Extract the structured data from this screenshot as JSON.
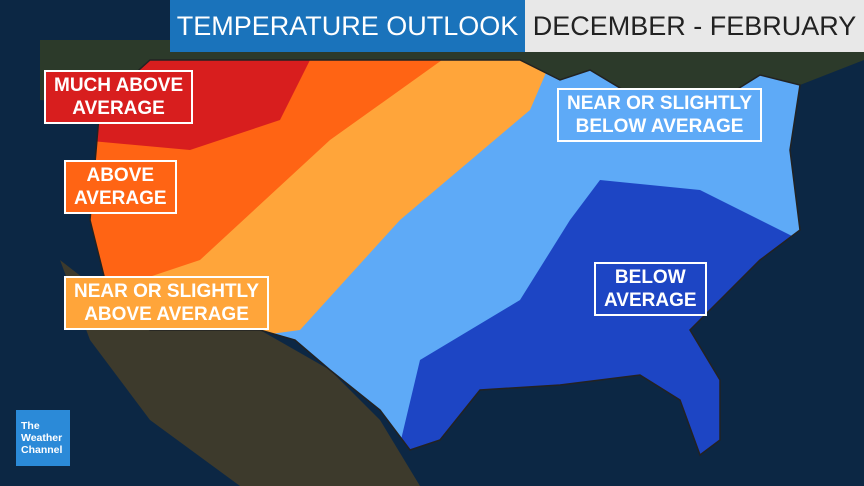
{
  "header": {
    "title": "TEMPERATURE OUTLOOK",
    "period": "DECEMBER - FEBRUARY"
  },
  "regions": [
    {
      "lines": [
        "MUCH ABOVE",
        "AVERAGE"
      ],
      "color": "#d81e1e"
    },
    {
      "lines": [
        "ABOVE",
        "AVERAGE"
      ],
      "color": "#ff6414"
    },
    {
      "lines": [
        "NEAR OR SLIGHTLY",
        "ABOVE AVERAGE"
      ],
      "color": "#ffa53a"
    },
    {
      "lines": [
        "NEAR OR SLIGHTLY",
        "BELOW AVERAGE"
      ],
      "color": "#5eaaf7"
    },
    {
      "lines": [
        "BELOW",
        "AVERAGE"
      ],
      "color": "#1d45c4"
    }
  ],
  "logo": {
    "lines": [
      "The",
      "Weather",
      "Channel"
    ]
  }
}
